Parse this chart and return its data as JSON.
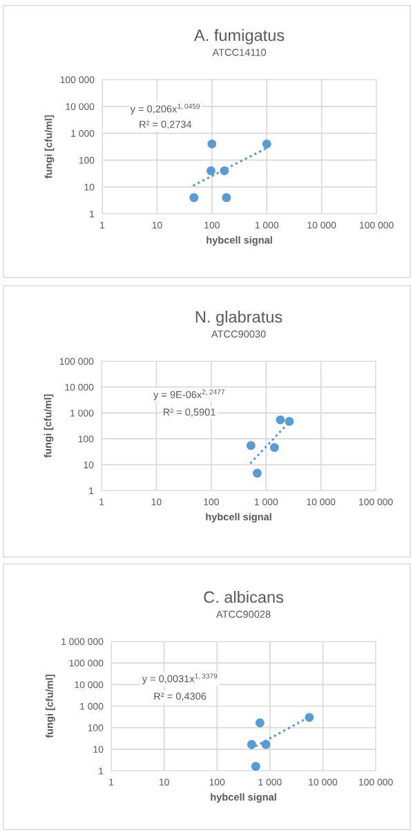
{
  "chart_data": [
    {
      "type": "scatter",
      "title": "A. fumigatus",
      "subtitle": "ATCC14110",
      "xlabel": "hybcell signal",
      "ylabel": "fungi [cfu/ml]",
      "log": "xy",
      "grid": true,
      "legend": false,
      "marker": "circle",
      "xlim": [
        1,
        100000
      ],
      "ylim": [
        1,
        100000
      ],
      "xticks": [
        1,
        10,
        100,
        {
          "value": 1000,
          "label": "1 000"
        },
        {
          "value": 10000,
          "label": "10 000"
        },
        {
          "value": 100000,
          "label": "100 000"
        }
      ],
      "yticks": [
        1,
        10,
        100,
        {
          "value": 1000,
          "label": "1 000"
        },
        {
          "value": 10000,
          "label": "10 000"
        },
        {
          "value": 100000,
          "label": "100 000"
        }
      ],
      "annotations": [
        "y = 0,206x$^{1,0459}$",
        "R² = 0,2734"
      ],
      "series": [
        {
          "color": "#5b9bd5",
          "x": [
            47,
            100,
            96,
            169,
            184,
            1000
          ],
          "values": [
            4,
            400,
            40,
            40,
            4,
            400
          ]
        },
        {
          "type": "line",
          "color": "#5b9bd5",
          "line_style": "dotted",
          "marker": "none",
          "x": [
            47,
            1000
          ],
          "values": [
            11.6,
            283
          ]
        }
      ]
    },
    {
      "type": "scatter",
      "title": "N. glabratus",
      "subtitle": "ATCC90030",
      "xlabel": "hybcell signal",
      "ylabel": "fungi [cfu/ml]",
      "log": "xy",
      "grid": true,
      "legend": false,
      "marker": "circle",
      "xlim": [
        1,
        100000
      ],
      "ylim": [
        1,
        100000
      ],
      "xticks": [
        1,
        10,
        100,
        {
          "value": 1000,
          "label": "1 000"
        },
        {
          "value": 10000,
          "label": "10 000"
        },
        {
          "value": 100000,
          "label": "100 000"
        }
      ],
      "yticks": [
        1,
        10,
        100,
        {
          "value": 1000,
          "label": "1 000"
        },
        {
          "value": 10000,
          "label": "10 000"
        },
        {
          "value": 100000,
          "label": "100 000"
        }
      ],
      "annotations": [
        "y = 9E-06x$^{2,2477}$",
        "R² = 0,5901"
      ],
      "series": [
        {
          "color": "#5b9bd5",
          "x": [
            530,
            690,
            1420,
            1820,
            2660
          ],
          "values": [
            55,
            4.7,
            46,
            540,
            470
          ]
        },
        {
          "type": "line",
          "color": "#5b9bd5",
          "line_style": "dotted",
          "marker": "none",
          "x": [
            530,
            2660
          ],
          "values": [
            12,
            448
          ]
        }
      ]
    },
    {
      "type": "scatter",
      "title": "C. albicans",
      "subtitle": "ATCC90028",
      "xlabel": "hybcell signal",
      "ylabel": "fungi [cfu/ml]",
      "log": "xy",
      "grid": true,
      "legend": false,
      "marker": "circle",
      "xlim": [
        1,
        100000
      ],
      "ylim": [
        1,
        1000000
      ],
      "xticks": [
        1,
        10,
        100,
        {
          "value": 1000,
          "label": "1 000"
        },
        {
          "value": 10000,
          "label": "10 000"
        },
        {
          "value": 100000,
          "label": "100 000"
        }
      ],
      "yticks": [
        1,
        10,
        100,
        {
          "value": 1000,
          "label": "1 000"
        },
        {
          "value": 10000,
          "label": "10 000"
        },
        {
          "value": 100000,
          "label": "100 000"
        },
        {
          "value": 1000000,
          "label": "1 000 000"
        }
      ],
      "annotations": [
        "y = 0,0031x$^{1,3379}$",
        "R² = 0,4306"
      ],
      "series": [
        {
          "color": "#5b9bd5",
          "x": [
            451,
            647,
            839,
            540,
            5560
          ],
          "values": [
            16.7,
            167,
            16.7,
            1.6,
            300
          ]
        },
        {
          "type": "line",
          "color": "#5b9bd5",
          "line_style": "dotted",
          "marker": "none",
          "x": [
            451,
            5560
          ],
          "values": [
            11,
            317
          ]
        }
      ]
    }
  ]
}
